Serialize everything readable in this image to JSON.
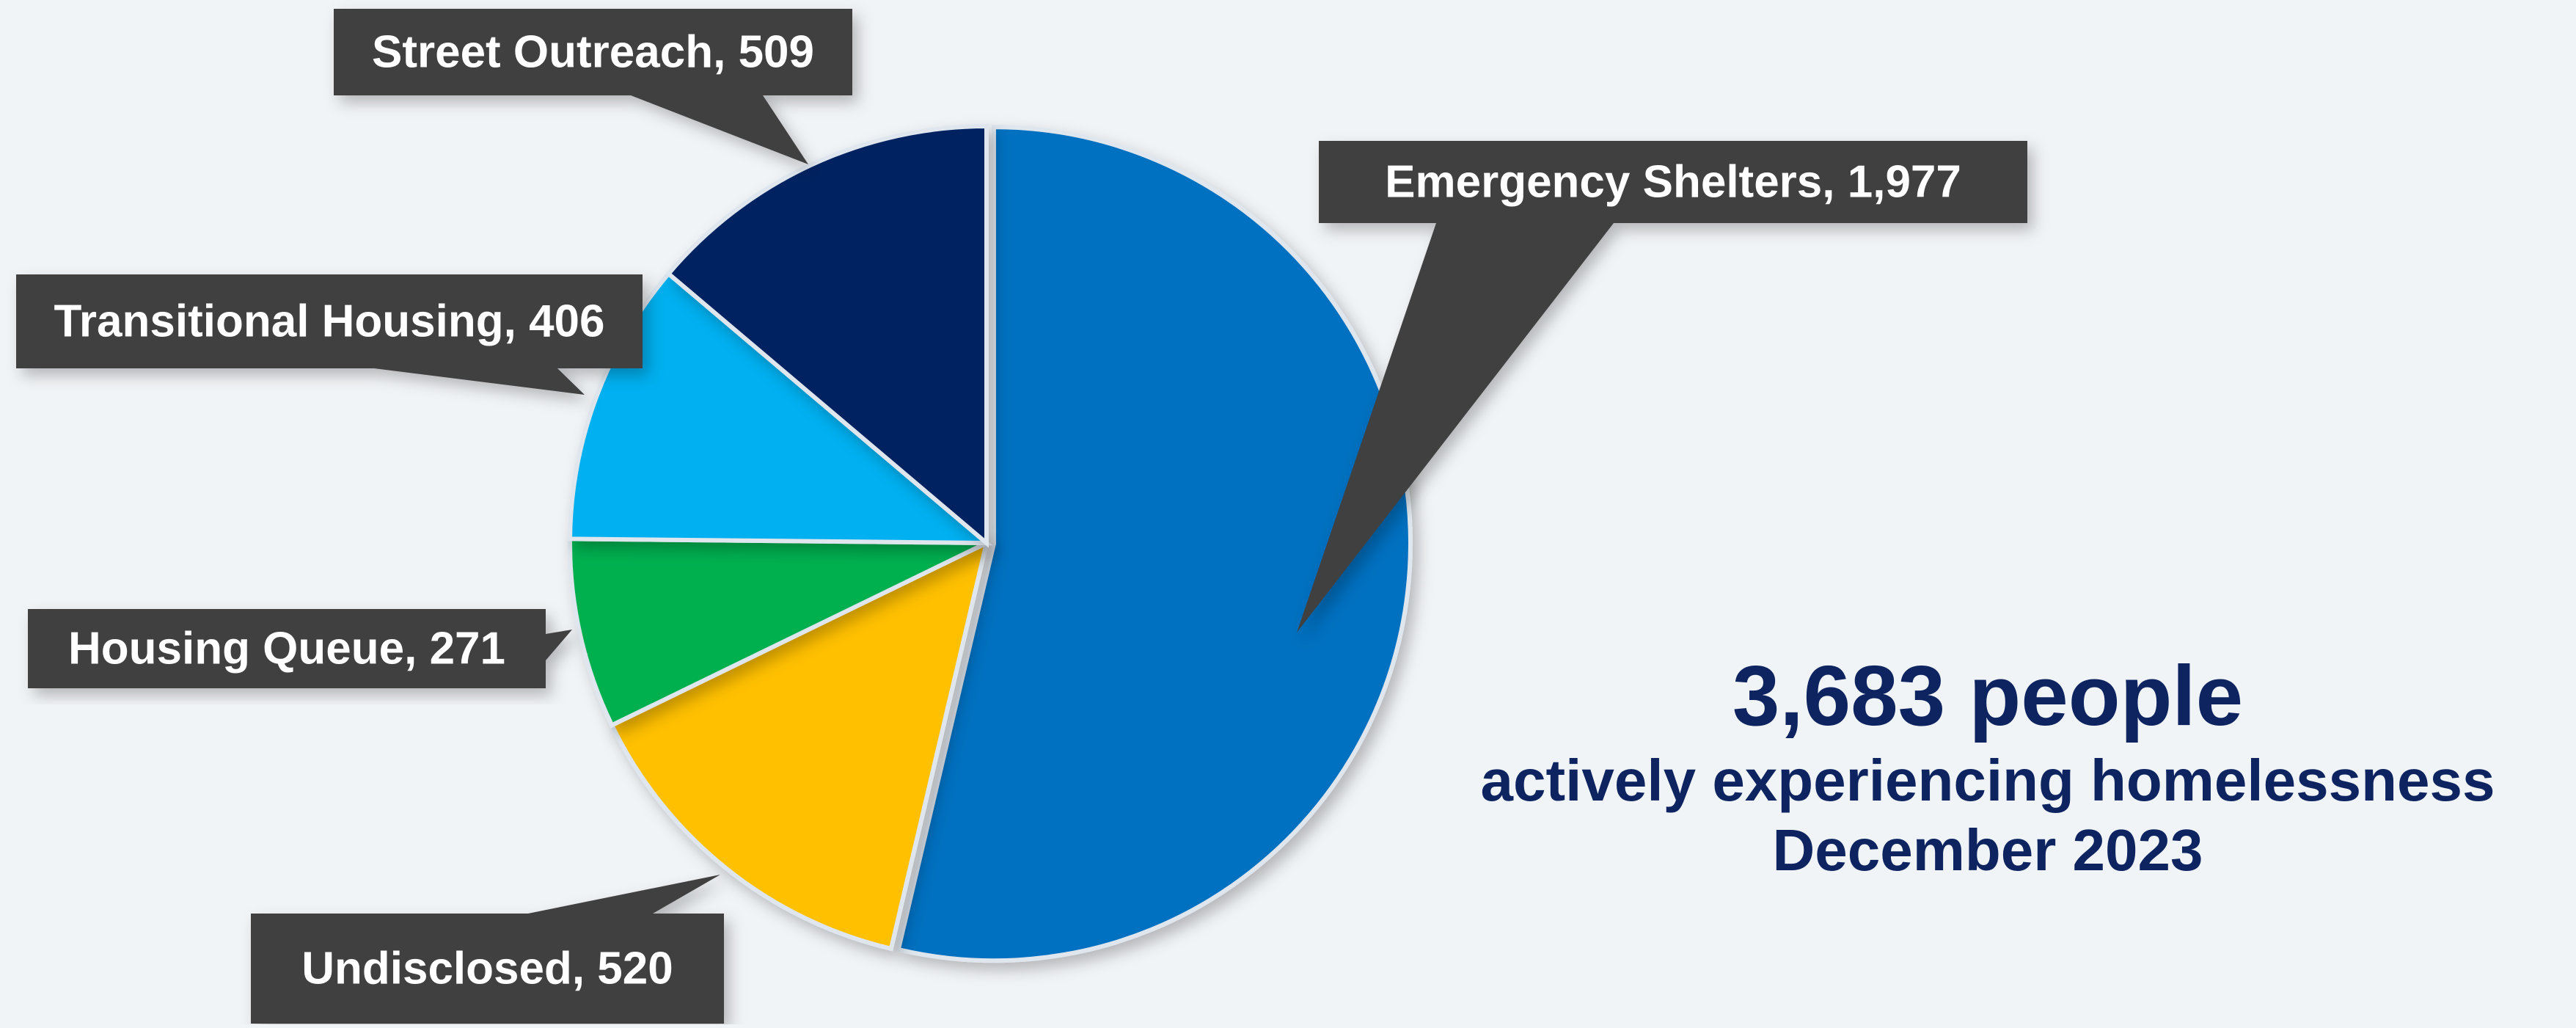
{
  "chart_data": {
    "type": "pie",
    "categories": [
      "Emergency Shelters",
      "Undisclosed",
      "Housing Queue",
      "Transitional Housing",
      "Street Outreach"
    ],
    "values": [
      1977,
      520,
      271,
      406,
      509
    ],
    "labels": [
      "Emergency Shelters, 1,977",
      "Undisclosed, 520",
      "Housing Queue, 271",
      "Transitional Housing, 406",
      "Street Outreach, 509"
    ],
    "colors": [
      "#0070c0",
      "#ffc000",
      "#00b050",
      "#00b0f0",
      "#002060"
    ],
    "start_angle_deg": 0,
    "direction": "clockwise",
    "legend": "none"
  },
  "summary": {
    "total": "3,683 people",
    "subtitle": "actively experiencing homelessness",
    "date": "December 2023"
  },
  "style": {
    "background": "#f1f4f7",
    "callout_fill": "#3f3f3f",
    "callout_text": "#ffffff",
    "summary_text": "#0d2461"
  }
}
